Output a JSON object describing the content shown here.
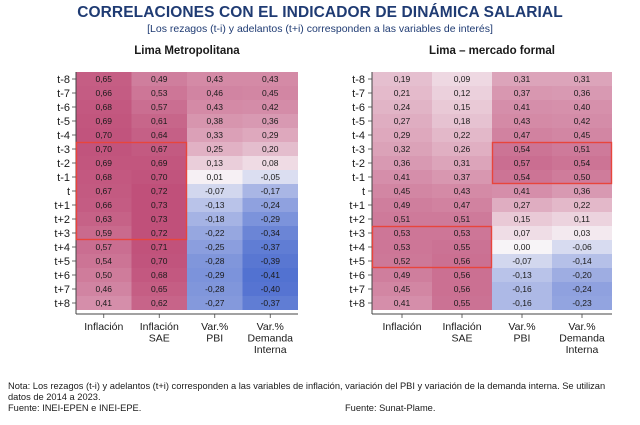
{
  "title": "CORRELACIONES CON EL INDICADOR DE DINÁMICA SALARIAL",
  "subtitle": "[Los rezagos (t-i) y adelantos (t+i) corresponden a las variables de interés]",
  "rows": [
    "t-8",
    "t-7",
    "t-6",
    "t-5",
    "t-4",
    "t-3",
    "t-2",
    "t-1",
    "t",
    "t+1",
    "t+2",
    "t+3",
    "t+4",
    "t+5",
    "t+6",
    "t+7",
    "t+8"
  ],
  "columns": [
    "Inflación",
    "Inflación\nSAE",
    "Var.%\nPBI",
    "Var.%\nDemanda\nInterna"
  ],
  "chart_data": [
    {
      "type": "heatmap",
      "title": "Lima Metropolitana",
      "values": [
        [
          0.65,
          0.49,
          0.43,
          0.43
        ],
        [
          0.66,
          0.53,
          0.46,
          0.45
        ],
        [
          0.68,
          0.57,
          0.43,
          0.42
        ],
        [
          0.69,
          0.61,
          0.38,
          0.36
        ],
        [
          0.7,
          0.64,
          0.33,
          0.29
        ],
        [
          0.7,
          0.67,
          0.25,
          0.2
        ],
        [
          0.69,
          0.69,
          0.13,
          0.08
        ],
        [
          0.68,
          0.7,
          0.01,
          -0.05
        ],
        [
          0.67,
          0.72,
          -0.07,
          -0.17
        ],
        [
          0.66,
          0.73,
          -0.13,
          -0.24
        ],
        [
          0.63,
          0.73,
          -0.18,
          -0.29
        ],
        [
          0.59,
          0.72,
          -0.22,
          -0.34
        ],
        [
          0.57,
          0.71,
          -0.25,
          -0.37
        ],
        [
          0.54,
          0.7,
          -0.28,
          -0.39
        ],
        [
          0.5,
          0.68,
          -0.29,
          -0.41
        ],
        [
          0.46,
          0.65,
          -0.28,
          -0.4
        ],
        [
          0.41,
          0.62,
          -0.27,
          -0.37
        ]
      ],
      "highlights": [
        {
          "col_start": 0,
          "col_end": 1,
          "row_start": 5,
          "row_end": 11
        }
      ]
    },
    {
      "type": "heatmap",
      "title": "Lima – mercado formal",
      "values": [
        [
          0.19,
          0.09,
          0.31,
          0.31
        ],
        [
          0.21,
          0.12,
          0.37,
          0.36
        ],
        [
          0.24,
          0.15,
          0.41,
          0.4
        ],
        [
          0.27,
          0.18,
          0.43,
          0.42
        ],
        [
          0.29,
          0.22,
          0.47,
          0.45
        ],
        [
          0.32,
          0.26,
          0.54,
          0.51
        ],
        [
          0.36,
          0.31,
          0.57,
          0.54
        ],
        [
          0.41,
          0.37,
          0.54,
          0.5
        ],
        [
          0.45,
          0.43,
          0.41,
          0.36
        ],
        [
          0.49,
          0.47,
          0.27,
          0.22
        ],
        [
          0.51,
          0.51,
          0.15,
          0.11
        ],
        [
          0.53,
          0.53,
          0.07,
          0.03
        ],
        [
          0.53,
          0.55,
          0.0,
          -0.06
        ],
        [
          0.52,
          0.56,
          -0.07,
          -0.14
        ],
        [
          0.49,
          0.56,
          -0.13,
          -0.2
        ],
        [
          0.45,
          0.56,
          -0.16,
          -0.24
        ],
        [
          0.41,
          0.55,
          -0.16,
          -0.23
        ]
      ],
      "highlights": [
        {
          "col_start": 2,
          "col_end": 3,
          "row_start": 5,
          "row_end": 7
        },
        {
          "col_start": 0,
          "col_end": 1,
          "row_start": 11,
          "row_end": 13
        }
      ]
    }
  ],
  "colors": {
    "title": "#1f3b73",
    "highlight": "#e8453c",
    "positive": "#c0507a",
    "neutral": "#f7f4f7",
    "negative": "#4f6fd0"
  },
  "footer": {
    "note_line1": "Nota: Los rezagos (t-i) y adelantos (t+i) corresponden a las variables de inflación, variación del PBI y variación de la demanda interna. Se utilizan",
    "note_line2": "datos de 2014 a 2023.",
    "source_left": "Fuente: INEI-EPEN e INEI-EPE.",
    "source_right": "Fuente: Sunat-Plame."
  }
}
